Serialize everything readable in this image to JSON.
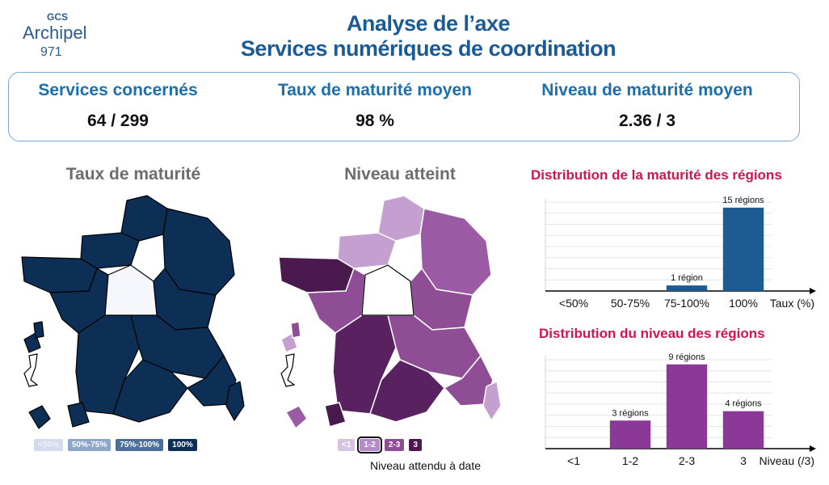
{
  "logo": {
    "line1": "GCS",
    "line2": "Archipel",
    "line3": "971"
  },
  "title": {
    "line1": "Analyse de l’axe",
    "line2": "Services numériques de coordination"
  },
  "kpis": [
    {
      "label": "Services concernés",
      "value": "64 / 299"
    },
    {
      "label": "Taux de maturité moyen",
      "value": "98 %"
    },
    {
      "label": "Niveau de maturité moyen",
      "value": "2.36 / 3"
    }
  ],
  "map_maturity": {
    "title": "Taux de maturité",
    "legend": [
      {
        "label": "<50%",
        "color": "#d6dbeb"
      },
      {
        "label": "50%-75%",
        "color": "#8ea6c8"
      },
      {
        "label": "75%-100%",
        "color": "#4a6f9c"
      },
      {
        "label": "100%",
        "color": "#0d2f55"
      }
    ]
  },
  "map_level": {
    "title": "Niveau atteint",
    "legend": [
      {
        "label": "<1",
        "color": "#d6c4e0"
      },
      {
        "label": "1-2",
        "color": "#b58ac8",
        "selected": true
      },
      {
        "label": "2-3",
        "color": "#8f4d95"
      },
      {
        "label": "3",
        "color": "#4a1a4e"
      }
    ],
    "target_note": "Niveau attendu à date"
  },
  "chart_data": [
    {
      "type": "bar",
      "title": "Distribution de la maturité des régions",
      "categories": [
        "<50%",
        "50-75%",
        "75-100%",
        "100%"
      ],
      "values": [
        0,
        0,
        1,
        15
      ],
      "labels": [
        "",
        "",
        "1 région",
        "15 régions"
      ],
      "xlabel": "Taux (%)",
      "ylim": [
        0,
        16
      ],
      "grid": true,
      "color": "#1f5b93"
    },
    {
      "type": "bar",
      "title": "Distribution du niveau des régions",
      "categories": [
        "<1",
        "1-2",
        "2-3",
        "3"
      ],
      "values": [
        0,
        3,
        9,
        4
      ],
      "labels": [
        "",
        "3 régions",
        "9 régions",
        "4 régions"
      ],
      "xlabel": "Niveau (/3)",
      "ylim": [
        0,
        9.5
      ],
      "grid": true,
      "color": "#8a3a96"
    }
  ]
}
